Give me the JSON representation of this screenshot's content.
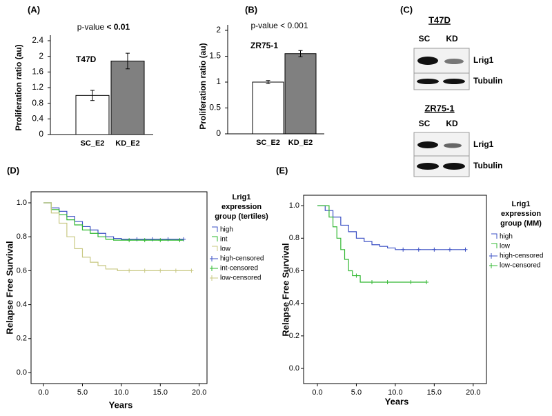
{
  "chart_data": [
    {
      "type": "bar",
      "label": "(A)",
      "annotation": "p-value",
      "annotation_bold": "< 0.01",
      "inset_label": "T47D",
      "y_label": "Proliferation ratio (au)",
      "categories": [
        "SC_E2",
        "KD_E2"
      ],
      "values": [
        1.0,
        1.88
      ],
      "errors": [
        0.13,
        0.2
      ],
      "colors": [
        "#ffffff",
        "#808080"
      ],
      "ylim": [
        0,
        2.4
      ],
      "yticks": [
        0,
        0.4,
        0.8,
        1.2,
        1.6,
        2,
        2.4
      ]
    },
    {
      "type": "bar",
      "label": "(B)",
      "annotation": "p-value < 0.001",
      "inset_label": "ZR75-1",
      "y_label": "Proliferation ratio (au)",
      "categories": [
        "SC_E2",
        "KD_E2"
      ],
      "values": [
        1.0,
        1.55
      ],
      "errors": [
        0.03,
        0.06
      ],
      "colors": [
        "#ffffff",
        "#808080"
      ],
      "ylim": [
        0,
        2
      ],
      "yticks": [
        0,
        0.5,
        1,
        1.5,
        2
      ]
    },
    {
      "type": "survival",
      "label": "(D)",
      "x_label": "Years",
      "y_label": "Relapse Free Survival",
      "legend_title": [
        "Lrig1",
        "expression",
        "group (tertiles)"
      ],
      "xlim": [
        -1.6,
        21.0
      ],
      "ylim": [
        -0.065,
        1.065
      ],
      "xticks": [
        {
          "value": 0,
          "label": "0.0"
        },
        {
          "value": 5,
          "label": "5.0"
        },
        {
          "value": 10,
          "label": "10.0"
        },
        {
          "value": 15,
          "label": "15.0"
        },
        {
          "value": 20,
          "label": "20.0"
        }
      ],
      "yticks": [
        {
          "value": 0,
          "label": "0.0"
        },
        {
          "value": 0.2,
          "label": "0.2"
        },
        {
          "value": 0.4,
          "label": "0.4"
        },
        {
          "value": 0.6,
          "label": "0.6"
        },
        {
          "value": 0.8,
          "label": "0.8"
        },
        {
          "value": 1,
          "label": "1.0"
        }
      ],
      "series": [
        {
          "name": "high",
          "censored_name": "high-censored",
          "color": "#3a4fc4",
          "x": [
            0,
            1,
            2,
            3,
            4,
            5,
            6,
            7,
            8,
            9,
            10,
            18
          ],
          "values": [
            1,
            0.97,
            0.95,
            0.92,
            0.89,
            0.86,
            0.84,
            0.82,
            0.8,
            0.79,
            0.785,
            0.785
          ],
          "censored_x": [
            12,
            14,
            16,
            18
          ],
          "censored_values": [
            0.785,
            0.785,
            0.785,
            0.785
          ]
        },
        {
          "name": "int",
          "censored_name": "int-censored",
          "color": "#2db82d",
          "x": [
            0,
            1,
            2,
            3,
            4,
            5,
            6,
            7,
            8,
            9,
            18
          ],
          "values": [
            1,
            0.96,
            0.93,
            0.9,
            0.87,
            0.84,
            0.82,
            0.8,
            0.785,
            0.78,
            0.78
          ],
          "censored_x": [
            11,
            13,
            15,
            17.5
          ],
          "censored_values": [
            0.78,
            0.78,
            0.78,
            0.78
          ]
        },
        {
          "name": "low",
          "censored_name": "low-censored",
          "color": "#c8c882",
          "x": [
            0,
            1,
            2,
            3,
            4,
            5,
            6,
            7,
            8,
            9.5,
            19
          ],
          "values": [
            1,
            0.94,
            0.88,
            0.8,
            0.73,
            0.68,
            0.65,
            0.63,
            0.61,
            0.6,
            0.6
          ],
          "censored_x": [
            11,
            13,
            15,
            17,
            19
          ],
          "censored_values": [
            0.6,
            0.6,
            0.6,
            0.6,
            0.6
          ]
        }
      ]
    },
    {
      "type": "survival",
      "label": "(E)",
      "x_label": "Years",
      "y_label": "Relapse Free Survival",
      "legend_title": [
        "Lrig1",
        "expression",
        "group (MM)"
      ],
      "xlim": [
        -1.77,
        21.7
      ],
      "ylim": [
        -0.093,
        1.064
      ],
      "xticks": [
        {
          "value": 0,
          "label": "0.0"
        },
        {
          "value": 5,
          "label": "5.0"
        },
        {
          "value": 10,
          "label": "10.0"
        },
        {
          "value": 15,
          "label": "15.0"
        },
        {
          "value": 20,
          "label": "20.0"
        }
      ],
      "yticks": [
        {
          "value": 0,
          "label": "0.0"
        },
        {
          "value": 0.2,
          "label": "0.2"
        },
        {
          "value": 0.4,
          "label": "0.4"
        },
        {
          "value": 0.6,
          "label": "0.6"
        },
        {
          "value": 0.8,
          "label": "0.8"
        },
        {
          "value": 1,
          "label": "1.0"
        }
      ],
      "series": [
        {
          "name": "high",
          "censored_name": "high-censored",
          "color": "#3a4fc4",
          "x": [
            0,
            1,
            2,
            3,
            4,
            5,
            6,
            7,
            8,
            9,
            10,
            19
          ],
          "values": [
            1,
            0.97,
            0.93,
            0.88,
            0.84,
            0.8,
            0.78,
            0.76,
            0.75,
            0.74,
            0.73,
            0.73
          ],
          "censored_x": [
            11,
            13,
            15,
            17,
            19
          ],
          "censored_values": [
            0.73,
            0.73,
            0.73,
            0.73,
            0.73
          ]
        },
        {
          "name": "low",
          "censored_name": "low-censored",
          "color": "#33b833",
          "x": [
            0,
            1.5,
            2,
            2.5,
            3,
            3.5,
            4,
            4.5,
            5.5,
            14
          ],
          "values": [
            1,
            0.93,
            0.87,
            0.8,
            0.73,
            0.67,
            0.6,
            0.57,
            0.53,
            0.53
          ],
          "censored_x": [
            5,
            7,
            9,
            12,
            14
          ],
          "censored_values": [
            0.57,
            0.53,
            0.53,
            0.53,
            0.53
          ]
        }
      ]
    }
  ],
  "blots": {
    "label": "(C)",
    "panels": [
      {
        "title": "T47D",
        "lanes": [
          "SC",
          "KD"
        ],
        "rows": [
          "Lrig1",
          "Tubulin"
        ]
      },
      {
        "title": "ZR75-1",
        "lanes": [
          "SC",
          "KD"
        ],
        "rows": [
          "Lrig1",
          "Tubulin"
        ]
      }
    ]
  }
}
